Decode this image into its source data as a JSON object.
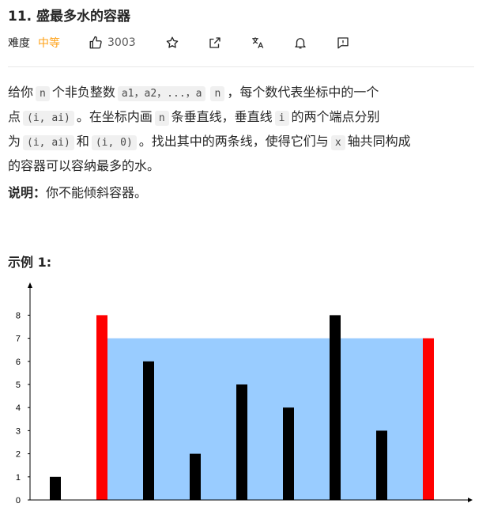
{
  "problem": {
    "title": "11. 盛最多水的容器",
    "difficulty_label": "难度",
    "difficulty": "中等",
    "likes": "3003"
  },
  "icons": [
    "thumbs-up-icon",
    "star-icon",
    "share-icon",
    "translate-icon",
    "bell-icon",
    "feedback-icon"
  ],
  "description": {
    "l1_a": "给你",
    "l1_n": "n",
    "l1_b": "个非负整数",
    "l1_a1": "a1，a2，...，a",
    "l1_an": "n",
    "l1_c": "，每个数代表坐标中的一个",
    "l2_a": "点",
    "l2_code": "(i,  ai)",
    "l2_b": "。在坐标内画",
    "l2_n": "n",
    "l2_c": "条垂直线，垂直线",
    "l2_i": "i",
    "l2_d": "的两个端点分别",
    "l3_a": "为",
    "l3_code1": "(i,  ai)",
    "l3_b": "和",
    "l3_code2": "(i, 0)",
    "l3_c": "。找出其中的两条线，使得它们与",
    "l3_x": "x",
    "l3_d": "轴共同构成",
    "l4": "的容器可以容纳最多的水。"
  },
  "note": {
    "label": "说明：",
    "text": "你不能倾斜容器。"
  },
  "example_title": "示例 1:",
  "chart_data": {
    "type": "bar",
    "x": [
      1,
      2,
      3,
      4,
      5,
      6,
      7,
      8,
      9
    ],
    "values": [
      1,
      8,
      6,
      2,
      5,
      4,
      8,
      3,
      7
    ],
    "highlight": [
      2,
      9
    ],
    "water_level": 7,
    "yticks": [
      "0",
      "1",
      "2",
      "3",
      "4",
      "5",
      "6",
      "7",
      "8"
    ],
    "ylim": [
      0,
      8
    ],
    "colors": {
      "bar": "#000000",
      "highlight": "#ff0000",
      "water": "#99ccff"
    }
  }
}
